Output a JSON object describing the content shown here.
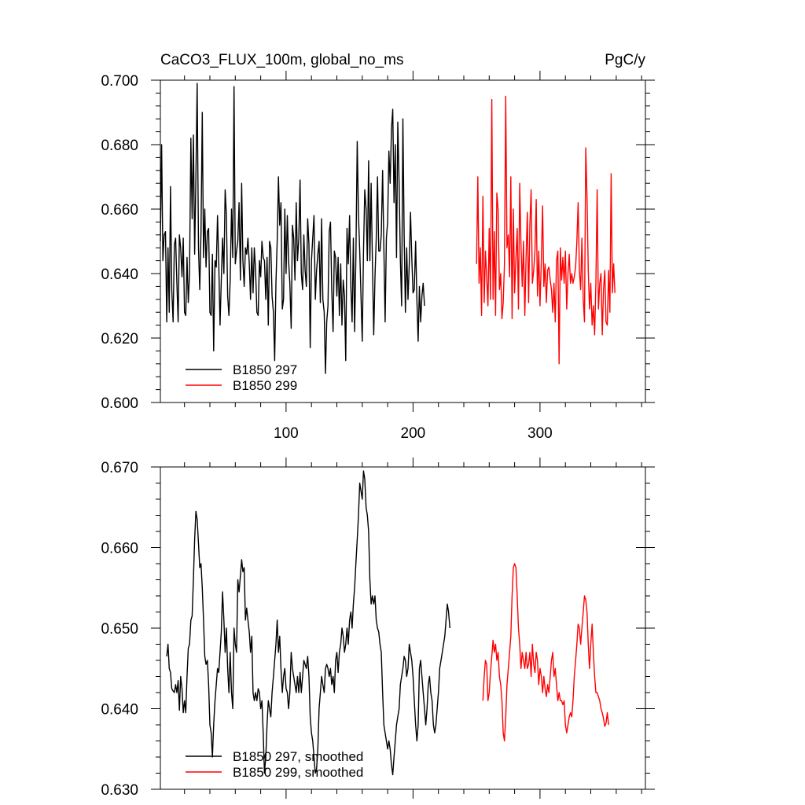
{
  "title_left": "CaCO3_FLUX_100m, global_no_ms",
  "title_right": "PgC/y",
  "colors": {
    "series_297": "#000000",
    "series_299": "#ff0000"
  },
  "chart_data": [
    {
      "type": "line",
      "xlim": [
        1,
        383
      ],
      "ylim": [
        0.6,
        0.7
      ],
      "x_ticks": [
        100,
        200,
        300
      ],
      "x_tick_labels": [
        "100",
        "200",
        "300"
      ],
      "y_ticks": [
        0.6,
        0.62,
        0.64,
        0.66,
        0.68,
        0.7
      ],
      "y_tick_labels": [
        "0.600",
        "0.620",
        "0.640",
        "0.660",
        "0.680",
        "0.700"
      ],
      "legend_position": "bottom-left",
      "series": [
        {
          "name": "B1850 297",
          "x_start": 1,
          "values": [
            0.65,
            0.68,
            0.644,
            0.652,
            0.653,
            0.625,
            0.648,
            0.628,
            0.667,
            0.635,
            0.625,
            0.649,
            0.651,
            0.637,
            0.625,
            0.652,
            0.648,
            0.639,
            0.651,
            0.628,
            0.627,
            0.645,
            0.631,
            0.64,
            0.682,
            0.657,
            0.683,
            0.646,
            0.67,
            0.699,
            0.648,
            0.635,
            0.653,
            0.69,
            0.645,
            0.66,
            0.642,
            0.653,
            0.654,
            0.628,
            0.627,
            0.646,
            0.616,
            0.644,
            0.642,
            0.658,
            0.643,
            0.624,
            0.638,
            0.651,
            0.64,
            0.666,
            0.658,
            0.633,
            0.627,
            0.638,
            0.66,
            0.645,
            0.698,
            0.643,
            0.647,
            0.65,
            0.662,
            0.638,
            0.668,
            0.644,
            0.636,
            0.648,
            0.646,
            0.651,
            0.643,
            0.632,
            0.648,
            0.634,
            0.648,
            0.641,
            0.628,
            0.627,
            0.644,
            0.639,
            0.65,
            0.645,
            0.644,
            0.632,
            0.645,
            0.624,
            0.65,
            0.648,
            0.633,
            0.628,
            0.613,
            0.637,
            0.65,
            0.67,
            0.655,
            0.662,
            0.629,
            0.632,
            0.66,
            0.64,
            0.658,
            0.644,
            0.637,
            0.623,
            0.655,
            0.651,
            0.638,
            0.662,
            0.644,
            0.651,
            0.669,
            0.64,
            0.635,
            0.652,
            0.641,
            0.636,
            0.657,
            0.649,
            0.617,
            0.644,
            0.651,
            0.658,
            0.632,
            0.641,
            0.646,
            0.65,
            0.631,
            0.657,
            0.632,
            0.628,
            0.609,
            0.625,
            0.63,
            0.653,
            0.656,
            0.635,
            0.622,
            0.647,
            0.645,
            0.633,
            0.645,
            0.627,
            0.643,
            0.624,
            0.638,
            0.633,
            0.613,
            0.654,
            0.643,
            0.658,
            0.636,
            0.625,
            0.651,
            0.622,
            0.645,
            0.681,
            0.658,
            0.647,
            0.633,
            0.619,
            0.647,
            0.666,
            0.66,
            0.644,
            0.675,
            0.644,
            0.668,
            0.644,
            0.621,
            0.639,
            0.651,
            0.67,
            0.647,
            0.647,
            0.652,
            0.672,
            0.648,
            0.625,
            0.651,
            0.656,
            0.678,
            0.668,
            0.685,
            0.691,
            0.662,
            0.68,
            0.645,
            0.687,
            0.668,
            0.644,
            0.63,
            0.688,
            0.652,
            0.628,
            0.648,
            0.632,
            0.643,
            0.659,
            0.645,
            0.634,
            0.635,
            0.65,
            0.632,
            0.619,
            0.636,
            0.625,
            0.633,
            0.637,
            0.63
          ]
        },
        {
          "name": "B1850 299",
          "x_start": 250,
          "values": [
            0.643,
            0.67,
            0.637,
            0.648,
            0.627,
            0.664,
            0.631,
            0.647,
            0.639,
            0.63,
            0.654,
            0.632,
            0.694,
            0.632,
            0.653,
            0.627,
            0.665,
            0.66,
            0.635,
            0.64,
            0.626,
            0.631,
            0.643,
            0.695,
            0.648,
            0.652,
            0.639,
            0.67,
            0.626,
            0.66,
            0.634,
            0.645,
            0.654,
            0.629,
            0.668,
            0.649,
            0.636,
            0.65,
            0.627,
            0.645,
            0.659,
            0.631,
            0.655,
            0.666,
            0.637,
            0.641,
            0.647,
            0.663,
            0.633,
            0.647,
            0.63,
            0.644,
            0.661,
            0.636,
            0.643,
            0.631,
            0.641,
            0.642,
            0.638,
            0.635,
            0.628,
            0.637,
            0.625,
            0.644,
            0.647,
            0.612,
            0.648,
            0.638,
            0.645,
            0.637,
            0.647,
            0.629,
            0.64,
            0.646,
            0.637,
            0.64,
            0.637,
            0.639,
            0.642,
            0.65,
            0.662,
            0.641,
            0.635,
            0.651,
            0.632,
            0.625,
            0.679,
            0.664,
            0.641,
            0.629,
            0.637,
            0.624,
            0.63,
            0.621,
            0.637,
            0.666,
            0.629,
            0.637,
            0.64,
            0.621,
            0.635,
            0.641,
            0.625,
            0.624,
            0.641,
            0.628,
            0.671,
            0.634,
            0.643,
            0.634
          ]
        }
      ]
    },
    {
      "type": "line",
      "xlim": [
        1,
        383
      ],
      "ylim": [
        0.63,
        0.67
      ],
      "x_ticks": [
        100,
        200,
        300
      ],
      "y_ticks": [
        0.63,
        0.64,
        0.65,
        0.66,
        0.67
      ],
      "y_tick_labels": [
        "0.630",
        "0.640",
        "0.650",
        "0.660",
        "0.670"
      ],
      "legend_position": "bottom-left",
      "series": [
        {
          "name": "B1850 297, smoothed",
          "x_start": 6,
          "values": [
            0.6465,
            0.648,
            0.645,
            0.6445,
            0.6425,
            0.6422,
            0.642,
            0.643,
            0.642,
            0.6435,
            0.6398,
            0.644,
            0.6425,
            0.6395,
            0.641,
            0.6395,
            0.644,
            0.6475,
            0.648,
            0.651,
            0.6515,
            0.656,
            0.661,
            0.6645,
            0.6635,
            0.6605,
            0.6575,
            0.658,
            0.655,
            0.651,
            0.6465,
            0.6455,
            0.646,
            0.643,
            0.638,
            0.637,
            0.634,
            0.638,
            0.641,
            0.643,
            0.645,
            0.6445,
            0.647,
            0.6495,
            0.6545,
            0.651,
            0.647,
            0.65,
            0.645,
            0.642,
            0.647,
            0.642,
            0.64,
            0.65,
            0.648,
            0.647,
            0.656,
            0.6545,
            0.6565,
            0.6585,
            0.657,
            0.6575,
            0.651,
            0.6525,
            0.651,
            0.6495,
            0.647,
            0.649,
            0.642,
            0.641,
            0.642,
            0.641,
            0.6425,
            0.642,
            0.64,
            0.641,
            0.637,
            0.632,
            0.634,
            0.638,
            0.641,
            0.64,
            0.639,
            0.642,
            0.644,
            0.646,
            0.648,
            0.651,
            0.647,
            0.649,
            0.645,
            0.642,
            0.644,
            0.645,
            0.6425,
            0.642,
            0.64,
            0.642,
            0.647,
            0.645,
            0.644,
            0.643,
            0.642,
            0.644,
            0.642,
            0.6445,
            0.642,
            0.644,
            0.646,
            0.6455,
            0.645,
            0.6465,
            0.644,
            0.639,
            0.637,
            0.636,
            0.634,
            0.632,
            0.6325,
            0.635,
            0.64,
            0.642,
            0.644,
            0.643,
            0.642,
            0.645,
            0.6455,
            0.645,
            0.644,
            0.645,
            0.643,
            0.644,
            0.642,
            0.646,
            0.647,
            0.6445,
            0.647,
            0.648,
            0.65,
            0.649,
            0.647,
            0.648,
            0.65,
            0.648,
            0.651,
            0.652,
            0.65,
            0.653,
            0.655,
            0.658,
            0.661,
            0.664,
            0.668,
            0.667,
            0.666,
            0.6695,
            0.6685,
            0.665,
            0.664,
            0.662,
            0.656,
            0.653,
            0.654,
            0.653,
            0.654,
            0.651,
            0.65,
            0.6495,
            0.648,
            0.647,
            0.642,
            0.638,
            0.637,
            0.636,
            0.635,
            0.636,
            0.635,
            0.633,
            0.6318,
            0.634,
            0.636,
            0.638,
            0.639,
            0.64,
            0.643,
            0.644,
            0.645,
            0.6465,
            0.646,
            0.644,
            0.645,
            0.648,
            0.647,
            0.646,
            0.644,
            0.641,
            0.638,
            0.636,
            0.638,
            0.645,
            0.646,
            0.644,
            0.642,
            0.64,
            0.638,
            0.64,
            0.643,
            0.644,
            0.642,
            0.641,
            0.638,
            0.637,
            0.638,
            0.64,
            0.642,
            0.645,
            0.646,
            0.647,
            0.648,
            0.649,
            0.651,
            0.653,
            0.652,
            0.65
          ]
        },
        {
          "name": "B1850 299, smoothed",
          "x_start": 255,
          "values": [
            0.641,
            0.644,
            0.646,
            0.6455,
            0.641,
            0.642,
            0.6445,
            0.6465,
            0.6485,
            0.647,
            0.648,
            0.646,
            0.647,
            0.644,
            0.643,
            0.641,
            0.637,
            0.636,
            0.639,
            0.643,
            0.645,
            0.647,
            0.649,
            0.654,
            0.6575,
            0.658,
            0.6575,
            0.654,
            0.65,
            0.648,
            0.645,
            0.647,
            0.646,
            0.645,
            0.647,
            0.645,
            0.6455,
            0.647,
            0.644,
            0.648,
            0.6455,
            0.6445,
            0.647,
            0.646,
            0.643,
            0.645,
            0.644,
            0.642,
            0.644,
            0.6425,
            0.6415,
            0.643,
            0.642,
            0.644,
            0.646,
            0.647,
            0.644,
            0.645,
            0.643,
            0.641,
            0.642,
            0.641,
            0.641,
            0.6405,
            0.641,
            0.638,
            0.637,
            0.638,
            0.639,
            0.6395,
            0.639,
            0.641,
            0.644,
            0.646,
            0.648,
            0.6505,
            0.65,
            0.648,
            0.65,
            0.652,
            0.654,
            0.6535,
            0.652,
            0.648,
            0.645,
            0.648,
            0.6505,
            0.647,
            0.644,
            0.642,
            0.642,
            0.6415,
            0.641,
            0.64,
            0.6395,
            0.6388,
            0.6378,
            0.6382,
            0.6395,
            0.638
          ]
        }
      ]
    }
  ]
}
